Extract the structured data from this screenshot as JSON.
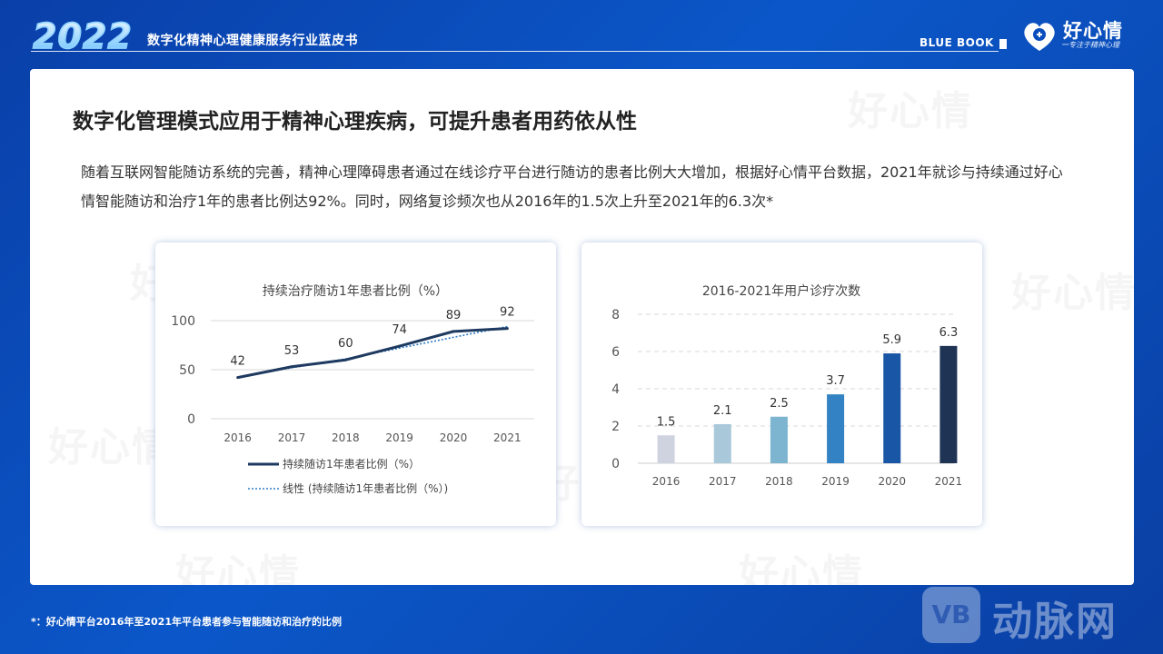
{
  "header": {
    "year": "2022",
    "subtitle": "数字化精神心理健康服务行业蓝皮书",
    "blue_book": "BLUE BOOK",
    "logo_text": "好心情",
    "logo_slogan": "一专注于精神心理"
  },
  "watermark": "好心情",
  "title": "数字化管理模式应用于精神心理疾病，可提升患者用药依从性",
  "paragraph": "随着互联网智能随访系统的完善，精神心理障碍患者通过在线诊疗平台进行随访的患者比例大大增加，根据好心情平台数据，2021年就诊与持续通过好心情智能随访和治疗1年的患者比例达92%。同时，网络复诊频次也从2016年的1.5次上升至2021年的6.3次*",
  "chart_data": [
    {
      "type": "line",
      "title": "持续治疗随访1年患者比例（%）",
      "categories": [
        "2016",
        "2017",
        "2018",
        "2019",
        "2020",
        "2021"
      ],
      "series": [
        {
          "name": "持续随访1年患者比例（%）",
          "values": [
            42,
            53,
            60,
            74,
            89,
            92
          ],
          "color": "#1f3a60"
        },
        {
          "name": "线性 (持续随访1年患者比例（%）)",
          "values": [
            42,
            52,
            61,
            72,
            83,
            94
          ],
          "color": "#2e7bc4"
        }
      ],
      "data_labels": [
        "42",
        "53",
        "60",
        "74",
        "89",
        "92"
      ],
      "ylim": [
        0,
        100
      ],
      "yticks": [
        "0",
        "50",
        "100"
      ],
      "legend": "bottom"
    },
    {
      "type": "bar",
      "title": "2016-2021年用户诊疗次数",
      "categories": [
        "2016",
        "2017",
        "2018",
        "2019",
        "2020",
        "2021"
      ],
      "values": [
        1.5,
        2.1,
        2.5,
        3.7,
        5.9,
        6.3
      ],
      "data_labels": [
        "1.5",
        "2.1",
        "2.5",
        "3.7",
        "5.9",
        "6.3"
      ],
      "colors": [
        "#cfd3e0",
        "#a9c8da",
        "#7db5d1",
        "#3383c4",
        "#1a56a6",
        "#1f3354"
      ],
      "ylim": [
        0,
        8
      ],
      "yticks": [
        "0",
        "2",
        "4",
        "6",
        "8"
      ]
    }
  ],
  "footnote": "*：好心情平台2016年至2021年平台患者参与智能随访和治疗的比例",
  "brand": {
    "box": "VB",
    "text": "动脉网"
  }
}
